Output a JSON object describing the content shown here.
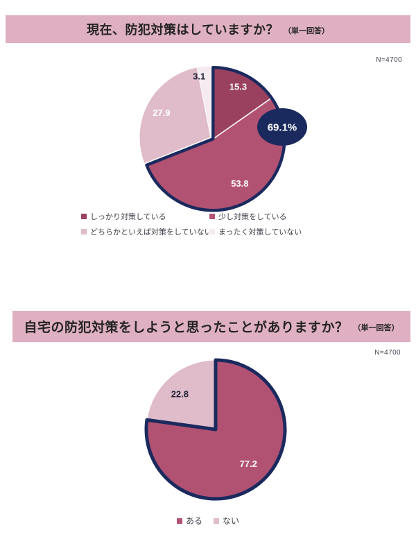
{
  "page_bg": "#ffffff",
  "accent": {
    "band_pink": "#dfb0c1",
    "navy": "#1b2a5e"
  },
  "chart_data": [
    {
      "type": "pie",
      "title": "現在、防犯対策はしていますか？",
      "title_note": "（単一回答）",
      "n_label": "N=4700",
      "categories": [
        "しっかり対策している",
        "少し対策をしている",
        "どちらかといえば対策をしていない",
        "まったく対策していない"
      ],
      "values": [
        15.3,
        53.8,
        27.9,
        3.1
      ],
      "colors": [
        "#9a4160",
        "#b25273",
        "#e0bbca",
        "#f4eaf0"
      ],
      "value_label_colors": [
        "#ffffff",
        "#ffffff",
        "#ffffff",
        "#1f2235"
      ],
      "start_angle_deg": 0,
      "direction": "clockwise",
      "legend_position": "bottom",
      "highlight": {
        "slices": [
          0,
          1
        ],
        "outline_color": "#1b2a5e",
        "callout_label": "69.1%"
      }
    },
    {
      "type": "pie",
      "title": "自宅の防犯対策をしようと思ったことがありますか？",
      "title_note": "（単一回答）",
      "n_label": "N=4700",
      "categories": [
        "ある",
        "ない"
      ],
      "values": [
        77.2,
        22.8
      ],
      "colors": [
        "#b25273",
        "#e0bbca"
      ],
      "value_label_colors": [
        "#ffffff",
        "#1f2235"
      ],
      "start_angle_deg": 0,
      "direction": "clockwise",
      "legend_position": "bottom",
      "highlight": {
        "slices": [
          0
        ],
        "outline_color": "#1b2a5e",
        "callout_label": null
      }
    }
  ]
}
